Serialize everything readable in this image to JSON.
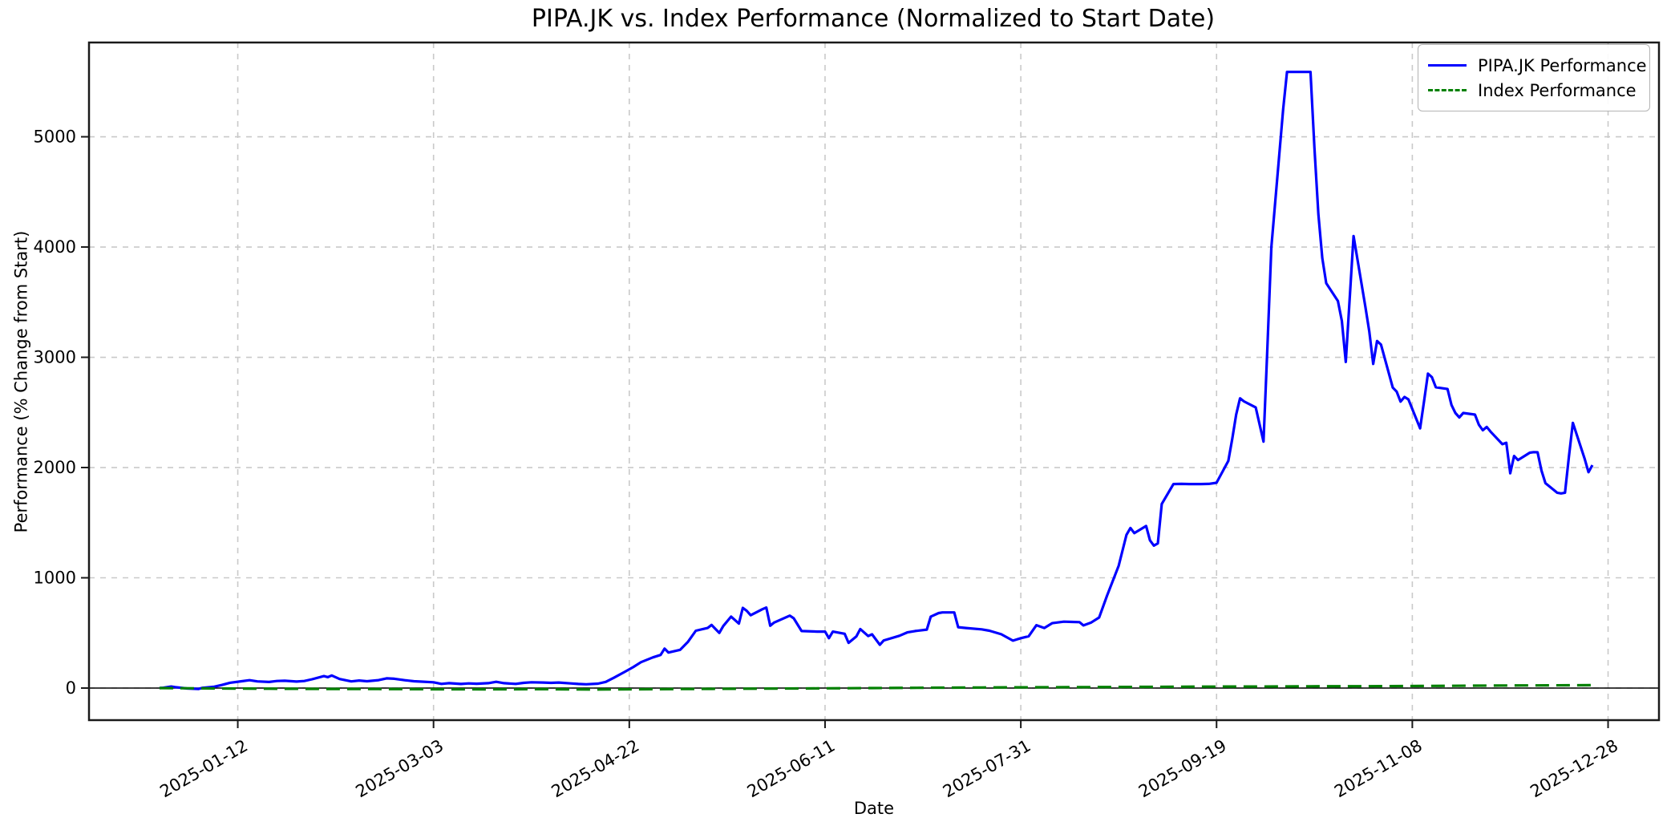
{
  "figure": {
    "title": "PIPA.JK vs. Index Performance (Normalized to Start Date)",
    "xlabel": "Date",
    "ylabel": "Performance (% Change from Start)"
  },
  "legend": {
    "position": "upper right",
    "items": [
      {
        "label": "PIPA.JK Performance",
        "color": "#0000ff",
        "style": "solid"
      },
      {
        "label": "Index Performance",
        "color": "#008000",
        "style": "dashed"
      }
    ]
  },
  "chart_data": {
    "type": "line",
    "title": "PIPA.JK vs. Index Performance (Normalized to Start Date)",
    "xlabel": "Date",
    "ylabel": "Performance (% Change from Start)",
    "grid": true,
    "legend_position": "upper right",
    "xlim": [
      "2024-12-05",
      "2026-01-10"
    ],
    "ylim": [
      -291,
      5855
    ],
    "x_ticks": [
      "2025-01-12",
      "2025-03-03",
      "2025-04-22",
      "2025-06-11",
      "2025-07-31",
      "2025-09-19",
      "2025-11-08",
      "2025-12-28"
    ],
    "y_ticks": [
      0,
      1000,
      2000,
      3000,
      4000,
      5000
    ],
    "zero_line": 0,
    "colors": {
      "pipa": "#0000ff",
      "index": "#008000",
      "grid": "#c9c9c9",
      "spine": "#1a1a1a"
    },
    "series": [
      {
        "name": "PIPA.JK Performance",
        "color": "#0000ff",
        "style": "solid",
        "points": [
          [
            "2024-12-23",
            0
          ],
          [
            "2024-12-24",
            3
          ],
          [
            "2024-12-26",
            14
          ],
          [
            "2024-12-27",
            9
          ],
          [
            "2024-12-30",
            -4
          ],
          [
            "2025-01-02",
            -8
          ],
          [
            "2025-01-03",
            2
          ],
          [
            "2025-01-06",
            12
          ],
          [
            "2025-01-08",
            28
          ],
          [
            "2025-01-10",
            48
          ],
          [
            "2025-01-13",
            62
          ],
          [
            "2025-01-15",
            71
          ],
          [
            "2025-01-17",
            60
          ],
          [
            "2025-01-20",
            55
          ],
          [
            "2025-01-22",
            64
          ],
          [
            "2025-01-24",
            66
          ],
          [
            "2025-01-27",
            59
          ],
          [
            "2025-01-29",
            64
          ],
          [
            "2025-01-31",
            80
          ],
          [
            "2025-02-03",
            108
          ],
          [
            "2025-02-04",
            99
          ],
          [
            "2025-02-05",
            114
          ],
          [
            "2025-02-07",
            82
          ],
          [
            "2025-02-10",
            60
          ],
          [
            "2025-02-12",
            68
          ],
          [
            "2025-02-14",
            62
          ],
          [
            "2025-02-17",
            72
          ],
          [
            "2025-02-19",
            88
          ],
          [
            "2025-02-21",
            84
          ],
          [
            "2025-02-24",
            70
          ],
          [
            "2025-02-26",
            62
          ],
          [
            "2025-02-28",
            58
          ],
          [
            "2025-03-03",
            52
          ],
          [
            "2025-03-05",
            38
          ],
          [
            "2025-03-07",
            44
          ],
          [
            "2025-03-10",
            37
          ],
          [
            "2025-03-12",
            42
          ],
          [
            "2025-03-14",
            39
          ],
          [
            "2025-03-17",
            44
          ],
          [
            "2025-03-19",
            57
          ],
          [
            "2025-03-21",
            44
          ],
          [
            "2025-03-24",
            38
          ],
          [
            "2025-03-26",
            47
          ],
          [
            "2025-03-28",
            52
          ],
          [
            "2025-03-31",
            50
          ],
          [
            "2025-04-02",
            47
          ],
          [
            "2025-04-04",
            50
          ],
          [
            "2025-04-07",
            42
          ],
          [
            "2025-04-09",
            37
          ],
          [
            "2025-04-11",
            34
          ],
          [
            "2025-04-14",
            40
          ],
          [
            "2025-04-16",
            56
          ],
          [
            "2025-04-18",
            92
          ],
          [
            "2025-04-21",
            150
          ],
          [
            "2025-04-23",
            190
          ],
          [
            "2025-04-25",
            235
          ],
          [
            "2025-04-28",
            278
          ],
          [
            "2025-04-30",
            300
          ],
          [
            "2025-05-01",
            358
          ],
          [
            "2025-05-02",
            322
          ],
          [
            "2025-05-05",
            347
          ],
          [
            "2025-05-07",
            420
          ],
          [
            "2025-05-09",
            520
          ],
          [
            "2025-05-12",
            545
          ],
          [
            "2025-05-13",
            572
          ],
          [
            "2025-05-15",
            500
          ],
          [
            "2025-05-16",
            562
          ],
          [
            "2025-05-18",
            648
          ],
          [
            "2025-05-20",
            585
          ],
          [
            "2025-05-21",
            727
          ],
          [
            "2025-05-22",
            700
          ],
          [
            "2025-05-23",
            660
          ],
          [
            "2025-05-26",
            715
          ],
          [
            "2025-05-27",
            730
          ],
          [
            "2025-05-28",
            565
          ],
          [
            "2025-05-29",
            594
          ],
          [
            "2025-06-02",
            657
          ],
          [
            "2025-06-03",
            633
          ],
          [
            "2025-06-05",
            517
          ],
          [
            "2025-06-09",
            512
          ],
          [
            "2025-06-11",
            512
          ],
          [
            "2025-06-12",
            452
          ],
          [
            "2025-06-13",
            512
          ],
          [
            "2025-06-16",
            492
          ],
          [
            "2025-06-17",
            410
          ],
          [
            "2025-06-19",
            468
          ],
          [
            "2025-06-20",
            535
          ],
          [
            "2025-06-22",
            472
          ],
          [
            "2025-06-23",
            487
          ],
          [
            "2025-06-25",
            392
          ],
          [
            "2025-06-26",
            432
          ],
          [
            "2025-06-30",
            474
          ],
          [
            "2025-07-02",
            505
          ],
          [
            "2025-07-04",
            517
          ],
          [
            "2025-07-07",
            530
          ],
          [
            "2025-07-08",
            648
          ],
          [
            "2025-07-10",
            680
          ],
          [
            "2025-07-11",
            686
          ],
          [
            "2025-07-14",
            686
          ],
          [
            "2025-07-15",
            552
          ],
          [
            "2025-07-17",
            545
          ],
          [
            "2025-07-21",
            532
          ],
          [
            "2025-07-23",
            520
          ],
          [
            "2025-07-26",
            488
          ],
          [
            "2025-07-29",
            430
          ],
          [
            "2025-07-31",
            452
          ],
          [
            "2025-08-02",
            470
          ],
          [
            "2025-08-04",
            570
          ],
          [
            "2025-08-06",
            545
          ],
          [
            "2025-08-08",
            588
          ],
          [
            "2025-08-11",
            602
          ],
          [
            "2025-08-13",
            600
          ],
          [
            "2025-08-15",
            598
          ],
          [
            "2025-08-16",
            568
          ],
          [
            "2025-08-18",
            595
          ],
          [
            "2025-08-20",
            640
          ],
          [
            "2025-08-22",
            835
          ],
          [
            "2025-08-25",
            1110
          ],
          [
            "2025-08-27",
            1390
          ],
          [
            "2025-08-28",
            1452
          ],
          [
            "2025-08-29",
            1405
          ],
          [
            "2025-09-01",
            1470
          ],
          [
            "2025-09-02",
            1340
          ],
          [
            "2025-09-03",
            1292
          ],
          [
            "2025-09-04",
            1312
          ],
          [
            "2025-09-05",
            1670
          ],
          [
            "2025-09-08",
            1850
          ],
          [
            "2025-09-10",
            1852
          ],
          [
            "2025-09-12",
            1850
          ],
          [
            "2025-09-15",
            1850
          ],
          [
            "2025-09-17",
            1852
          ],
          [
            "2025-09-19",
            1862
          ],
          [
            "2025-09-22",
            2060
          ],
          [
            "2025-09-23",
            2260
          ],
          [
            "2025-09-24",
            2480
          ],
          [
            "2025-09-25",
            2628
          ],
          [
            "2025-09-26",
            2600
          ],
          [
            "2025-09-29",
            2545
          ],
          [
            "2025-10-01",
            2235
          ],
          [
            "2025-10-02",
            3100
          ],
          [
            "2025-10-03",
            4000
          ],
          [
            "2025-10-06",
            5250
          ],
          [
            "2025-10-07",
            5588
          ],
          [
            "2025-10-08",
            5588
          ],
          [
            "2025-10-09",
            5588
          ],
          [
            "2025-10-10",
            5588
          ],
          [
            "2025-10-13",
            5588
          ],
          [
            "2025-10-14",
            4900
          ],
          [
            "2025-10-15",
            4300
          ],
          [
            "2025-10-16",
            3900
          ],
          [
            "2025-10-17",
            3672
          ],
          [
            "2025-10-20",
            3510
          ],
          [
            "2025-10-21",
            3330
          ],
          [
            "2025-10-22",
            2958
          ],
          [
            "2025-10-24",
            4100
          ],
          [
            "2025-10-27",
            3460
          ],
          [
            "2025-10-28",
            3235
          ],
          [
            "2025-10-29",
            2940
          ],
          [
            "2025-10-30",
            3148
          ],
          [
            "2025-10-31",
            3115
          ],
          [
            "2025-11-03",
            2725
          ],
          [
            "2025-11-04",
            2688
          ],
          [
            "2025-11-05",
            2598
          ],
          [
            "2025-11-06",
            2640
          ],
          [
            "2025-11-07",
            2618
          ],
          [
            "2025-11-10",
            2355
          ],
          [
            "2025-11-11",
            2600
          ],
          [
            "2025-11-12",
            2852
          ],
          [
            "2025-11-13",
            2820
          ],
          [
            "2025-11-14",
            2728
          ],
          [
            "2025-11-17",
            2712
          ],
          [
            "2025-11-18",
            2568
          ],
          [
            "2025-11-19",
            2495
          ],
          [
            "2025-11-20",
            2455
          ],
          [
            "2025-11-21",
            2495
          ],
          [
            "2025-11-24",
            2480
          ],
          [
            "2025-11-25",
            2388
          ],
          [
            "2025-11-26",
            2338
          ],
          [
            "2025-11-27",
            2368
          ],
          [
            "2025-11-28",
            2325
          ],
          [
            "2025-12-01",
            2212
          ],
          [
            "2025-12-02",
            2225
          ],
          [
            "2025-12-03",
            1948
          ],
          [
            "2025-12-04",
            2105
          ],
          [
            "2025-12-05",
            2068
          ],
          [
            "2025-12-08",
            2135
          ],
          [
            "2025-12-09",
            2140
          ],
          [
            "2025-12-10",
            2138
          ],
          [
            "2025-12-11",
            1972
          ],
          [
            "2025-12-12",
            1858
          ],
          [
            "2025-12-15",
            1772
          ],
          [
            "2025-12-16",
            1765
          ],
          [
            "2025-12-17",
            1772
          ],
          [
            "2025-12-18",
            2100
          ],
          [
            "2025-12-19",
            2405
          ],
          [
            "2025-12-22",
            2082
          ],
          [
            "2025-12-23",
            1958
          ],
          [
            "2025-12-24",
            2022
          ]
        ]
      },
      {
        "name": "Index Performance",
        "color": "#008000",
        "style": "dashed",
        "points": [
          [
            "2024-12-23",
            0
          ],
          [
            "2025-01-06",
            -4
          ],
          [
            "2025-01-20",
            -6
          ],
          [
            "2025-02-03",
            -8
          ],
          [
            "2025-02-17",
            -9
          ],
          [
            "2025-03-03",
            -11
          ],
          [
            "2025-03-17",
            -12
          ],
          [
            "2025-03-31",
            -10
          ],
          [
            "2025-04-14",
            -13
          ],
          [
            "2025-04-28",
            -10
          ],
          [
            "2025-05-12",
            -7
          ],
          [
            "2025-05-26",
            -5
          ],
          [
            "2025-06-09",
            -3
          ],
          [
            "2025-06-23",
            0
          ],
          [
            "2025-07-07",
            3
          ],
          [
            "2025-07-21",
            5
          ],
          [
            "2025-08-04",
            7
          ],
          [
            "2025-08-18",
            9
          ],
          [
            "2025-09-01",
            11
          ],
          [
            "2025-09-15",
            13
          ],
          [
            "2025-09-29",
            14
          ],
          [
            "2025-10-13",
            16
          ],
          [
            "2025-10-27",
            17
          ],
          [
            "2025-11-10",
            19
          ],
          [
            "2025-11-24",
            22
          ],
          [
            "2025-12-08",
            24
          ],
          [
            "2025-12-24",
            26
          ]
        ]
      }
    ]
  }
}
